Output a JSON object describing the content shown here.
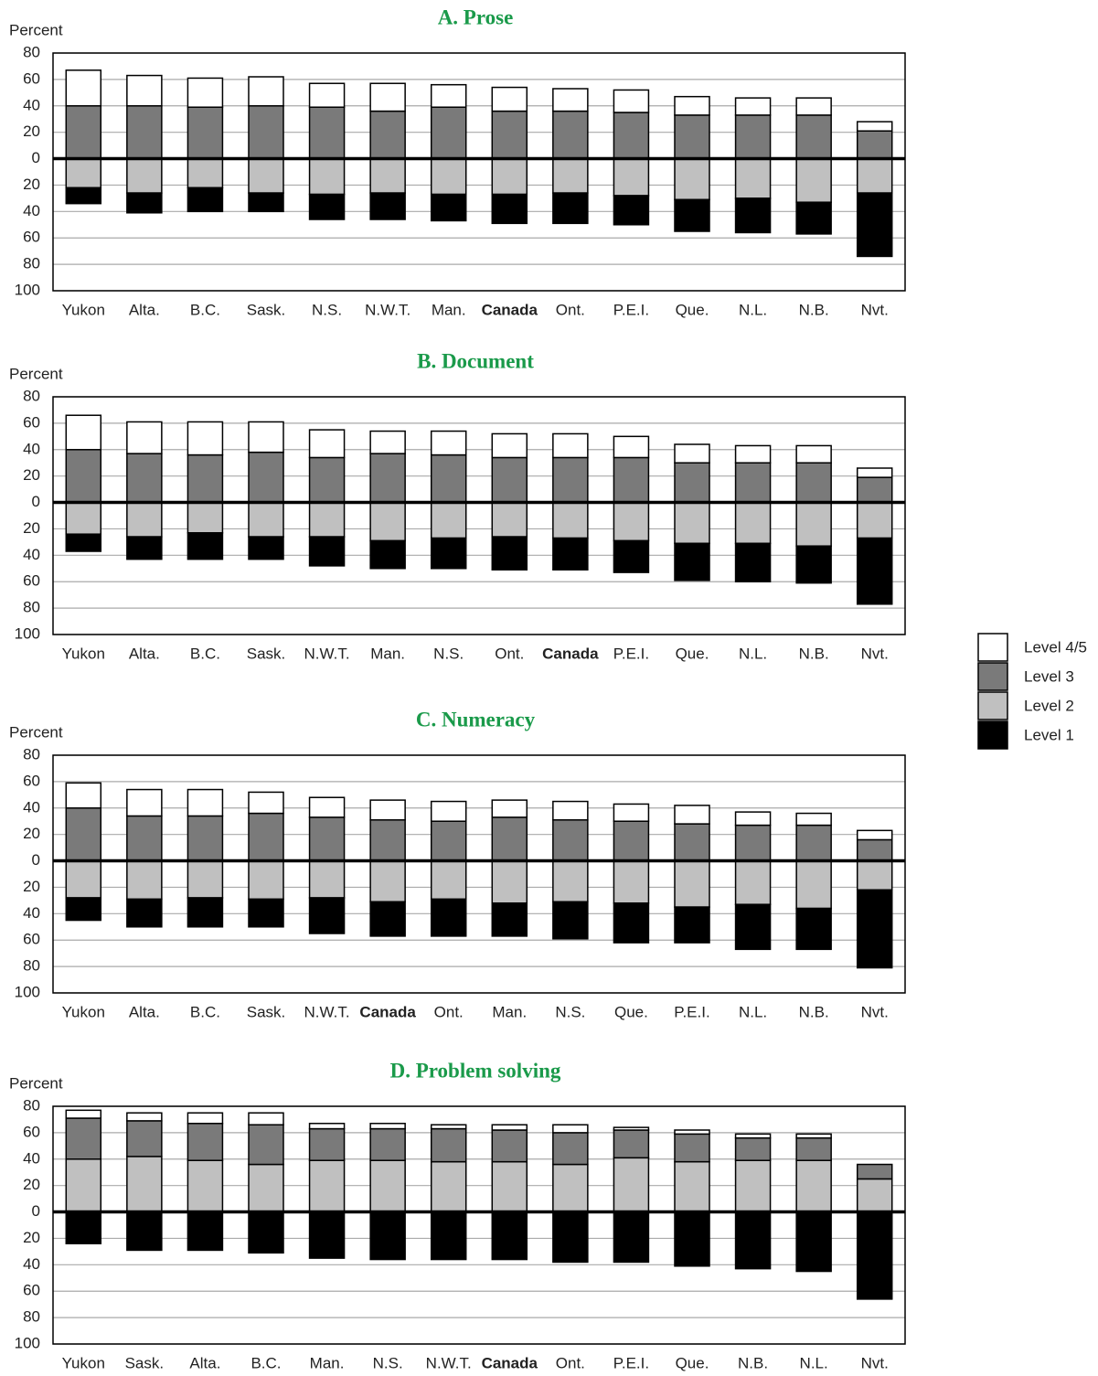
{
  "legend": [
    {
      "name": "Level 4/5",
      "color": "#ffffff"
    },
    {
      "name": "Level 3",
      "color": "#7a7a7a"
    },
    {
      "name": "Level 2",
      "color": "#c0c0c0"
    },
    {
      "name": "Level 1",
      "color": "#000000"
    }
  ],
  "highlight_category": "Canada",
  "highlight_color": "#1a9a4a",
  "chart_data": [
    {
      "type": "bar",
      "title": "A.   Prose",
      "y_label": "Percent",
      "categories": [
        "Yukon",
        "Alta.",
        "B.C.",
        "Sask.",
        "N.S.",
        "N.W.T.",
        "Man.",
        "Canada",
        "Ont.",
        "P.E.I.",
        "Que.",
        "N.L.",
        "N.B.",
        "Nvt."
      ],
      "series": [
        {
          "values": [
            27,
            23,
            22,
            22,
            18,
            21,
            17,
            18,
            17,
            17,
            14,
            13,
            13,
            7
          ]
        },
        {
          "values": [
            40,
            40,
            39,
            40,
            39,
            36,
            39,
            36,
            36,
            35,
            33,
            33,
            33,
            21
          ]
        },
        {
          "values": [
            -22,
            -26,
            -22,
            -26,
            -27,
            -26,
            -27,
            -27,
            -26,
            -28,
            -31,
            -30,
            -33,
            -26
          ]
        },
        {
          "values": [
            -12,
            -15,
            -18,
            -14,
            -19,
            -20,
            -20,
            -22,
            -23,
            -22,
            -24,
            -26,
            -24,
            -48
          ]
        }
      ],
      "ylim": [
        -100,
        80
      ],
      "yticks": [
        80,
        60,
        40,
        20,
        0,
        {
          "value": -20,
          "label": "20"
        },
        {
          "value": -40,
          "label": "40"
        },
        {
          "value": -60,
          "label": "60"
        },
        {
          "value": -80,
          "label": "80"
        },
        {
          "value": -100,
          "label": "100"
        }
      ],
      "grid": true
    },
    {
      "type": "bar",
      "title": "B.   Document",
      "y_label": "Percent",
      "categories": [
        "Yukon",
        "Alta.",
        "B.C.",
        "Sask.",
        "N.W.T.",
        "Man.",
        "N.S.",
        "Ont.",
        "Canada",
        "P.E.I.",
        "Que.",
        "N.L.",
        "N.B.",
        "Nvt."
      ],
      "series": [
        {
          "values": [
            26,
            24,
            25,
            23,
            21,
            17,
            18,
            18,
            18,
            16,
            14,
            13,
            13,
            7
          ]
        },
        {
          "values": [
            40,
            37,
            36,
            38,
            34,
            37,
            36,
            34,
            34,
            34,
            30,
            30,
            30,
            19
          ]
        },
        {
          "values": [
            -24,
            -26,
            -23,
            -26,
            -26,
            -29,
            -27,
            -26,
            -27,
            -29,
            -31,
            -31,
            -33,
            -27
          ]
        },
        {
          "values": [
            -13,
            -17,
            -20,
            -17,
            -22,
            -21,
            -23,
            -25,
            -24,
            -24,
            -28,
            -29,
            -28,
            -50
          ]
        }
      ],
      "ylim": [
        -100,
        80
      ],
      "yticks": [
        80,
        60,
        40,
        20,
        0,
        {
          "value": -20,
          "label": "20"
        },
        {
          "value": -40,
          "label": "40"
        },
        {
          "value": -60,
          "label": "60"
        },
        {
          "value": -80,
          "label": "80"
        },
        {
          "value": -100,
          "label": "100"
        }
      ],
      "grid": true
    },
    {
      "type": "bar",
      "title": "C.   Numeracy",
      "y_label": "Percent",
      "categories": [
        "Yukon",
        "Alta.",
        "B.C.",
        "Sask.",
        "N.W.T.",
        "Canada",
        "Ont.",
        "Man.",
        "N.S.",
        "Que.",
        "P.E.I.",
        "N.L.",
        "N.B.",
        "Nvt."
      ],
      "series": [
        {
          "values": [
            19,
            20,
            20,
            16,
            15,
            15,
            15,
            13,
            14,
            13,
            14,
            10,
            9,
            7
          ]
        },
        {
          "values": [
            40,
            34,
            34,
            36,
            33,
            31,
            30,
            33,
            31,
            30,
            28,
            27,
            27,
            16
          ]
        },
        {
          "values": [
            -28,
            -29,
            -28,
            -29,
            -28,
            -31,
            -29,
            -32,
            -31,
            -32,
            -35,
            -33,
            -36,
            -22
          ]
        },
        {
          "values": [
            -17,
            -21,
            -22,
            -21,
            -27,
            -26,
            -28,
            -25,
            -28,
            -30,
            -27,
            -34,
            -31,
            -59
          ]
        }
      ],
      "ylim": [
        -100,
        80
      ],
      "yticks": [
        80,
        60,
        40,
        20,
        0,
        {
          "value": -20,
          "label": "20"
        },
        {
          "value": -40,
          "label": "40"
        },
        {
          "value": -60,
          "label": "60"
        },
        {
          "value": -80,
          "label": "80"
        },
        {
          "value": -100,
          "label": "100"
        }
      ],
      "grid": true
    },
    {
      "type": "bar",
      "title": "D.   Problem solving",
      "y_label": "Percent",
      "categories": [
        "Yukon",
        "Sask.",
        "Alta.",
        "B.C.",
        "Man.",
        "N.S.",
        "N.W.T.",
        "Canada",
        "Ont.",
        "P.E.I.",
        "Que.",
        "N.B.",
        "N.L.",
        "Nvt."
      ],
      "series": [
        {
          "values": [
            6,
            6,
            8,
            9,
            4,
            4,
            3,
            4,
            6,
            2,
            3,
            3,
            3,
            0
          ]
        },
        {
          "values": [
            31,
            27,
            28,
            30,
            24,
            24,
            25,
            24,
            24,
            21,
            21,
            17,
            17,
            11
          ]
        },
        {
          "values": [
            40,
            42,
            39,
            36,
            39,
            39,
            38,
            38,
            36,
            41,
            38,
            39,
            39,
            25
          ]
        },
        {
          "values": [
            -24,
            -29,
            -29,
            -31,
            -35,
            -36,
            -36,
            -36,
            -38,
            -38,
            -41,
            -43,
            -45,
            -66
          ]
        }
      ],
      "ylim": [
        -100,
        80
      ],
      "yticks": [
        80,
        60,
        40,
        20,
        0,
        {
          "value": -20,
          "label": "20"
        },
        {
          "value": -40,
          "label": "40"
        },
        {
          "value": -60,
          "label": "60"
        },
        {
          "value": -80,
          "label": "80"
        },
        {
          "value": -100,
          "label": "100"
        }
      ],
      "grid": true
    }
  ]
}
